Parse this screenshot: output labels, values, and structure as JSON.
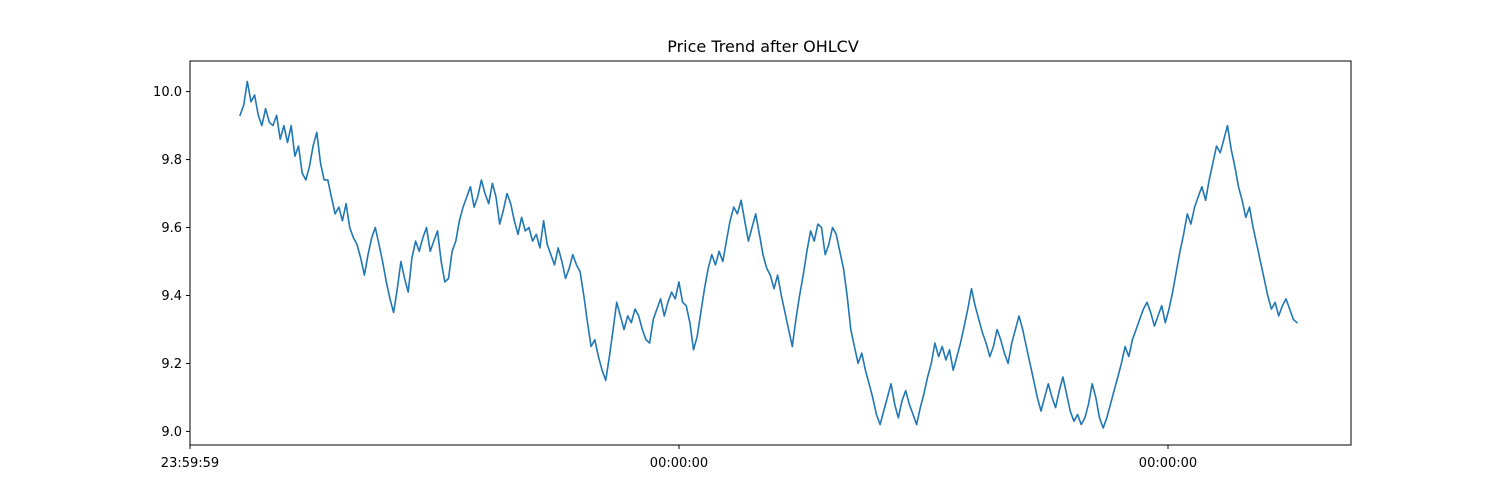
{
  "chart_data": {
    "type": "line",
    "title": "Price Trend after OHLCV",
    "xlabel": "",
    "ylabel": "",
    "grid": false,
    "legend": "none",
    "ylim": [
      8.96,
      10.09
    ],
    "x_tick_labels": [
      "23:59:59",
      "00:00:00",
      "00:00:00"
    ],
    "y_ticks": [
      9.0,
      9.2,
      9.4,
      9.6,
      9.8,
      10.0
    ],
    "y_tick_labels": [
      "9.0",
      "9.2",
      "9.4",
      "9.6",
      "9.8",
      "10.0"
    ],
    "series": [
      {
        "color": "#1f77b4",
        "values": [
          9.93,
          9.96,
          10.03,
          9.97,
          9.99,
          9.93,
          9.9,
          9.95,
          9.91,
          9.9,
          9.93,
          9.86,
          9.9,
          9.85,
          9.9,
          9.81,
          9.84,
          9.76,
          9.74,
          9.78,
          9.84,
          9.88,
          9.79,
          9.74,
          9.74,
          9.69,
          9.64,
          9.66,
          9.62,
          9.67,
          9.6,
          9.57,
          9.55,
          9.51,
          9.46,
          9.52,
          9.57,
          9.6,
          9.55,
          9.5,
          9.44,
          9.39,
          9.35,
          9.42,
          9.5,
          9.45,
          9.41,
          9.51,
          9.56,
          9.53,
          9.57,
          9.6,
          9.53,
          9.56,
          9.59,
          9.5,
          9.44,
          9.45,
          9.53,
          9.56,
          9.62,
          9.66,
          9.69,
          9.72,
          9.66,
          9.69,
          9.74,
          9.7,
          9.67,
          9.73,
          9.69,
          9.61,
          9.65,
          9.7,
          9.67,
          9.62,
          9.58,
          9.63,
          9.59,
          9.6,
          9.56,
          9.58,
          9.54,
          9.62,
          9.55,
          9.52,
          9.49,
          9.54,
          9.5,
          9.45,
          9.48,
          9.52,
          9.49,
          9.47,
          9.4,
          9.32,
          9.25,
          9.27,
          9.22,
          9.18,
          9.15,
          9.22,
          9.3,
          9.38,
          9.34,
          9.3,
          9.34,
          9.32,
          9.36,
          9.34,
          9.3,
          9.27,
          9.26,
          9.33,
          9.36,
          9.39,
          9.34,
          9.38,
          9.41,
          9.39,
          9.44,
          9.38,
          9.37,
          9.32,
          9.24,
          9.28,
          9.35,
          9.42,
          9.48,
          9.52,
          9.49,
          9.53,
          9.5,
          9.56,
          9.62,
          9.66,
          9.64,
          9.68,
          9.62,
          9.56,
          9.6,
          9.64,
          9.58,
          9.52,
          9.48,
          9.46,
          9.42,
          9.46,
          9.4,
          9.35,
          9.3,
          9.25,
          9.33,
          9.4,
          9.46,
          9.53,
          9.59,
          9.56,
          9.61,
          9.6,
          9.52,
          9.55,
          9.6,
          9.58,
          9.53,
          9.48,
          9.4,
          9.3,
          9.25,
          9.2,
          9.23,
          9.18,
          9.14,
          9.1,
          9.05,
          9.02,
          9.06,
          9.1,
          9.14,
          9.08,
          9.04,
          9.09,
          9.12,
          9.08,
          9.05,
          9.02,
          9.07,
          9.11,
          9.16,
          9.2,
          9.26,
          9.22,
          9.25,
          9.21,
          9.24,
          9.18,
          9.22,
          9.26,
          9.31,
          9.36,
          9.42,
          9.37,
          9.33,
          9.29,
          9.26,
          9.22,
          9.25,
          9.3,
          9.27,
          9.23,
          9.2,
          9.26,
          9.3,
          9.34,
          9.3,
          9.25,
          9.2,
          9.15,
          9.1,
          9.06,
          9.1,
          9.14,
          9.1,
          9.07,
          9.12,
          9.16,
          9.11,
          9.06,
          9.03,
          9.05,
          9.02,
          9.04,
          9.08,
          9.14,
          9.1,
          9.04,
          9.01,
          9.04,
          9.08,
          9.12,
          9.16,
          9.2,
          9.25,
          9.22,
          9.27,
          9.3,
          9.33,
          9.36,
          9.38,
          9.35,
          9.31,
          9.34,
          9.37,
          9.32,
          9.36,
          9.41,
          9.47,
          9.53,
          9.58,
          9.64,
          9.61,
          9.66,
          9.69,
          9.72,
          9.68,
          9.74,
          9.79,
          9.84,
          9.82,
          9.86,
          9.9,
          9.83,
          9.78,
          9.72,
          9.68,
          9.63,
          9.66,
          9.6,
          9.55,
          9.5,
          9.45,
          9.4,
          9.36,
          9.38,
          9.34,
          9.37,
          9.39,
          9.36,
          9.33,
          9.32
        ]
      }
    ]
  }
}
